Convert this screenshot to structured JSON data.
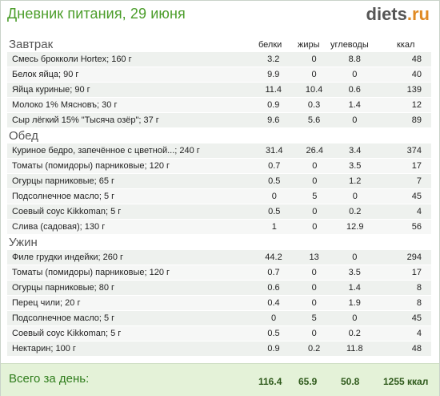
{
  "header": {
    "title": "Дневник питания, 29 июня",
    "brand": "diets",
    "brand_tld": ".ru"
  },
  "columns": {
    "protein": "белки",
    "fat": "жиры",
    "carbs": "углеводы",
    "kcal": "ккал"
  },
  "meals": [
    {
      "name": "Завтрак",
      "items": [
        {
          "name": "Смесь брокколи Hortex; 160 г",
          "protein": "3.2",
          "fat": "0",
          "carbs": "8.8",
          "kcal": "48"
        },
        {
          "name": "Белок яйца; 90 г",
          "protein": "9.9",
          "fat": "0",
          "carbs": "0",
          "kcal": "40"
        },
        {
          "name": "Яйца куриные; 90 г",
          "protein": "11.4",
          "fat": "10.4",
          "carbs": "0.6",
          "kcal": "139"
        },
        {
          "name": "Молоко 1% Мясновъ; 30 г",
          "protein": "0.9",
          "fat": "0.3",
          "carbs": "1.4",
          "kcal": "12"
        },
        {
          "name": "Сыр лёгкий 15% \"Тысяча озёр\"; 37 г",
          "protein": "9.6",
          "fat": "5.6",
          "carbs": "0",
          "kcal": "89"
        }
      ]
    },
    {
      "name": "Обед",
      "items": [
        {
          "name": "Куриное бедро, запечённое с цветной...; 240 г",
          "protein": "31.4",
          "fat": "26.4",
          "carbs": "3.4",
          "kcal": "374"
        },
        {
          "name": "Томаты (помидоры) парниковые; 120 г",
          "protein": "0.7",
          "fat": "0",
          "carbs": "3.5",
          "kcal": "17"
        },
        {
          "name": "Огурцы парниковые; 65 г",
          "protein": "0.5",
          "fat": "0",
          "carbs": "1.2",
          "kcal": "7"
        },
        {
          "name": "Подсолнечное масло; 5 г",
          "protein": "0",
          "fat": "5",
          "carbs": "0",
          "kcal": "45"
        },
        {
          "name": "Соевый соус Kikkoman; 5 г",
          "protein": "0.5",
          "fat": "0",
          "carbs": "0.2",
          "kcal": "4"
        },
        {
          "name": "Слива (садовая); 130 г",
          "protein": "1",
          "fat": "0",
          "carbs": "12.9",
          "kcal": "56"
        }
      ]
    },
    {
      "name": "Ужин",
      "items": [
        {
          "name": "Филе грудки индейки; 260 г",
          "protein": "44.2",
          "fat": "13",
          "carbs": "0",
          "kcal": "294"
        },
        {
          "name": "Томаты (помидоры) парниковые; 120 г",
          "protein": "0.7",
          "fat": "0",
          "carbs": "3.5",
          "kcal": "17"
        },
        {
          "name": "Огурцы парниковые; 80 г",
          "protein": "0.6",
          "fat": "0",
          "carbs": "1.4",
          "kcal": "8"
        },
        {
          "name": "Перец чили; 20 г",
          "protein": "0.4",
          "fat": "0",
          "carbs": "1.9",
          "kcal": "8"
        },
        {
          "name": "Подсолнечное масло; 5 г",
          "protein": "0",
          "fat": "5",
          "carbs": "0",
          "kcal": "45"
        },
        {
          "name": "Соевый соус Kikkoman; 5 г",
          "protein": "0.5",
          "fat": "0",
          "carbs": "0.2",
          "kcal": "4"
        },
        {
          "name": "Нектарин; 100 г",
          "protein": "0.9",
          "fat": "0.2",
          "carbs": "11.8",
          "kcal": "48"
        }
      ]
    }
  ],
  "total": {
    "label": "Всего за день:",
    "protein": "116.4",
    "fat": "65.9",
    "carbs": "50.8",
    "kcal": "1255 ккал"
  }
}
